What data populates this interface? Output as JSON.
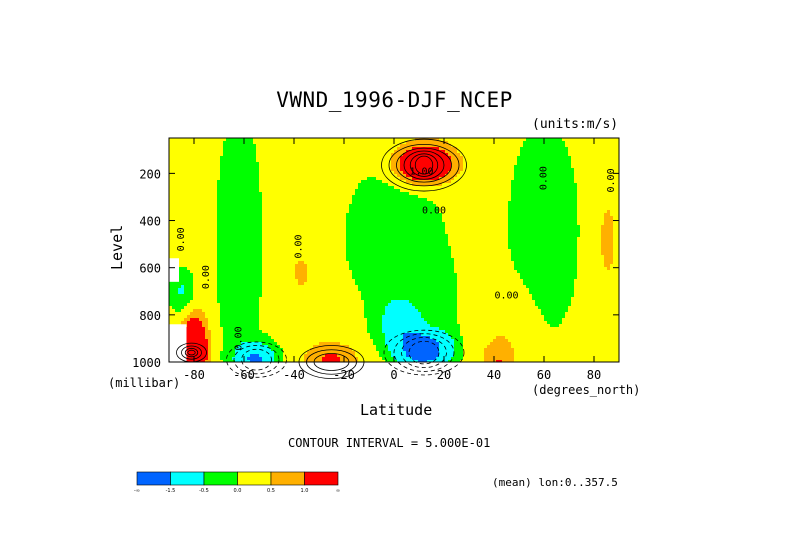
{
  "title": "VWND_1996-DJF_NCEP",
  "units_label": "(units:m/s)",
  "contour_interval_label": "CONTOUR INTERVAL = 5.000E-01",
  "mean_label": "(mean) lon:0..357.5",
  "chart_data": {
    "type": "contour",
    "title": "VWND_1996-DJF_NCEP",
    "xlabel": "Latitude",
    "x_unit": "(degrees_north)",
    "ylabel": "Level",
    "y_unit": "(millibar)",
    "xlim": [
      -90,
      90
    ],
    "ylim": [
      1000,
      50
    ],
    "y_inverted": true,
    "x_ticks": [
      -80,
      -60,
      -40,
      -20,
      0,
      20,
      40,
      60,
      80
    ],
    "x_tick_labels": [
      "-80",
      "-60",
      "-40",
      "-20",
      "0",
      "20",
      "40",
      "60",
      "80"
    ],
    "y_ticks": [
      200,
      400,
      600,
      800,
      1000
    ],
    "y_tick_labels": [
      "200",
      "400",
      "600",
      "800",
      "1000"
    ],
    "contour_interval": 0.5,
    "contour_labels": [
      {
        "text": "1.00",
        "lat": 11,
        "level": 205
      },
      {
        "text": "0.00",
        "lat": 16,
        "level": 370
      },
      {
        "text": "0.00",
        "lat": -37,
        "level": 510
      },
      {
        "text": "0.00",
        "lat": -84,
        "level": 480
      },
      {
        "text": "0.00",
        "lat": -74,
        "level": 640
      },
      {
        "text": "0.00",
        "lat": -61,
        "level": 900
      },
      {
        "text": "0.00",
        "lat": 61,
        "level": 220
      },
      {
        "text": "0.00",
        "lat": 88,
        "level": 230
      },
      {
        "text": "0.00",
        "lat": 45,
        "level": 730
      }
    ],
    "features": [
      {
        "name": "upper-level jet maximum",
        "lat": 12,
        "level": 170,
        "value": 2.0
      },
      {
        "name": "lower-level minimum",
        "lat": 12,
        "level": 950,
        "value": -2.0
      },
      {
        "name": "lower-level minimum",
        "lat": -55,
        "level": 980,
        "value": -1.5
      },
      {
        "name": "lower-level maximum",
        "lat": -80,
        "level": 950,
        "value": 2.0
      }
    ],
    "colorbar": {
      "levels": [
        "-∞",
        "-1.5",
        "-0.5",
        "0.0",
        "0.5",
        "1.0",
        "∞"
      ],
      "colors": [
        "#0064ff",
        "#00ffff",
        "#00ff00",
        "#ffff00",
        "#ffb000",
        "#ff0000"
      ]
    }
  }
}
